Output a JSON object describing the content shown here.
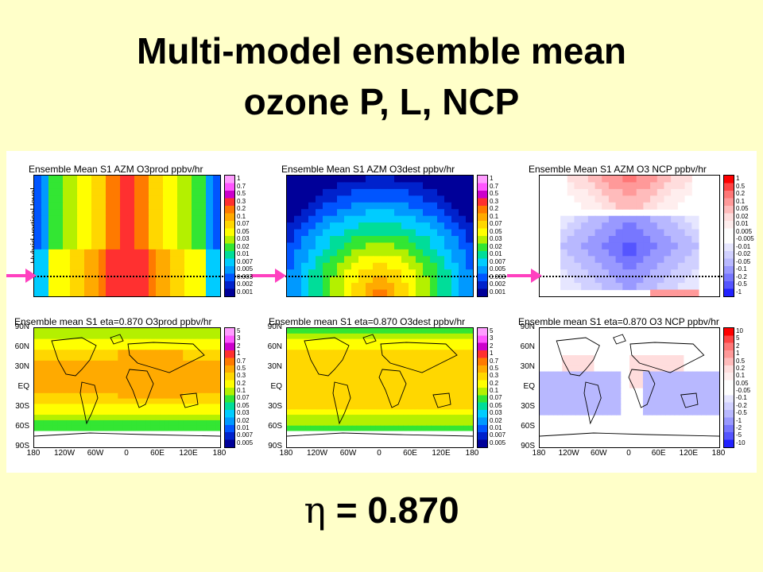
{
  "slide": {
    "title_line1": "Multi-model ensemble mean",
    "title_line2": "ozone P, L, NCP",
    "eta_symbol": "η",
    "eta_text": " = 0.870"
  },
  "figure": {
    "y_axis_label": "Hybrid vertical level",
    "panels_top": [
      {
        "title": "Ensemble Mean S1 AZM O3prod ppbv/hr"
      },
      {
        "title": "Ensemble Mean S1 AZM O3dest ppbv/hr"
      },
      {
        "title": "Ensemble Mean S1 AZM O3 NCP ppbv/hr"
      }
    ],
    "panels_bottom": [
      {
        "title": "Ensemble mean S1 eta=0.870 O3prod ppbv/hr"
      },
      {
        "title": "Ensemble mean S1 eta=0.870 O3dest ppbv/hr"
      },
      {
        "title": "Ensemble mean S1 eta=0.870 O3 NCP ppbv/hr"
      }
    ],
    "lat_labels": [
      "90N",
      "60N",
      "30N",
      "EQ",
      "30S",
      "60S",
      "90S"
    ],
    "lon_labels": [
      "180",
      "120W",
      "60W",
      "0",
      "60E",
      "120E",
      "180"
    ],
    "colorbar_top_rate": [
      "1",
      "0.7",
      "0.5",
      "0.3",
      "0.2",
      "0.1",
      "0.07",
      "0.05",
      "0.03",
      "0.02",
      "0.01",
      "0.007",
      "0.005",
      "0.003",
      "0.002",
      "0.001"
    ],
    "colorbar_top_ncp": [
      "1",
      "0.5",
      "0.2",
      "0.1",
      "0.05",
      "0.02",
      "0.01",
      "0.005",
      "-0.005",
      "-0.01",
      "-0.02",
      "-0.05",
      "-0.1",
      "-0.2",
      "-0.5",
      "-1"
    ],
    "colorbar_bottom_rate": [
      "5",
      "3",
      "2",
      "1",
      "0.7",
      "0.5",
      "0.3",
      "0.2",
      "0.1",
      "0.07",
      "0.05",
      "0.03",
      "0.02",
      "0.01",
      "0.007",
      "0.005"
    ],
    "colorbar_bottom_ncp": [
      "10",
      "5",
      "2",
      "1",
      "0.5",
      "0.2",
      "0.1",
      "0.05",
      "-0.05",
      "-0.1",
      "-0.2",
      "-0.5",
      "-1",
      "-2",
      "-5",
      "-10"
    ],
    "colors": {
      "background": "#ffffc9",
      "arrow": "#ff40c0",
      "rate_scale": [
        "#ff9cff",
        "#ff55ff",
        "#cc00cc",
        "#ff3030",
        "#ff7a00",
        "#ffaa00",
        "#ffd700",
        "#ffff00",
        "#b4f000",
        "#33e633",
        "#00dd99",
        "#00ccff",
        "#0099ff",
        "#0055ff",
        "#0022cc",
        "#000099"
      ],
      "ncp_scale": [
        "#ff0000",
        "#ff4444",
        "#ff7777",
        "#ff9999",
        "#ffbbbb",
        "#ffdddd",
        "#ffeeee",
        "#ffffff",
        "#ffffff",
        "#e6e6ff",
        "#d0d0ff",
        "#b8b8ff",
        "#9999ff",
        "#7777ff",
        "#5555ff",
        "#2222ff"
      ]
    }
  }
}
